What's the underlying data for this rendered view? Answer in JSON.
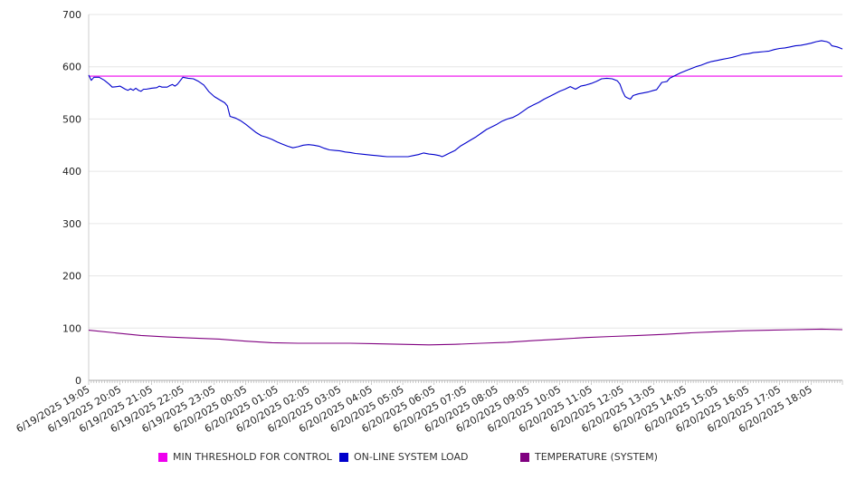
{
  "chart_data": {
    "type": "line",
    "ylim": [
      0,
      700
    ],
    "yticks": [
      0,
      100,
      200,
      300,
      400,
      500,
      600,
      700
    ],
    "grid": true,
    "legend_position": "bottom",
    "x_tick_labels": [
      "6/19/2025 19:05",
      "6/19/2025 20:05",
      "6/19/2025 21:05",
      "6/19/2025 22:05",
      "6/19/2025 23:05",
      "6/20/2025 00:05",
      "6/20/2025 01:05",
      "6/20/2025 02:05",
      "6/20/2025 03:05",
      "6/20/2025 04:05",
      "6/20/2025 05:05",
      "6/20/2025 06:05",
      "6/20/2025 07:05",
      "6/20/2025 08:05",
      "6/20/2025 09:05",
      "6/20/2025 10:05",
      "6/20/2025 11:05",
      "6/20/2025 12:05",
      "6/20/2025 13:05",
      "6/20/2025 14:05",
      "6/20/2025 15:05",
      "6/20/2025 16:05",
      "6/20/2025 17:05",
      "6/20/2025 18:05"
    ],
    "x_unit_minutes": 5,
    "x_end_index": 288,
    "series": [
      {
        "name": "MIN THRESHOLD FOR CONTROL",
        "color": "#ee00ee",
        "points": [
          [
            0,
            582
          ],
          [
            288,
            582
          ]
        ]
      },
      {
        "name": "ON-LINE SYSTEM LOAD",
        "color": "#0000cc",
        "points": [
          [
            0,
            584
          ],
          [
            1,
            574
          ],
          [
            2,
            580
          ],
          [
            4,
            580
          ],
          [
            6,
            574
          ],
          [
            8,
            566
          ],
          [
            9,
            561
          ],
          [
            11,
            562
          ],
          [
            12,
            563
          ],
          [
            14,
            557
          ],
          [
            15,
            555
          ],
          [
            16,
            558
          ],
          [
            17,
            555
          ],
          [
            18,
            559
          ],
          [
            19,
            555
          ],
          [
            20,
            553
          ],
          [
            21,
            557
          ],
          [
            22,
            557
          ],
          [
            24,
            559
          ],
          [
            26,
            560
          ],
          [
            27,
            563
          ],
          [
            28,
            561
          ],
          [
            30,
            561
          ],
          [
            31,
            564
          ],
          [
            32,
            566
          ],
          [
            33,
            563
          ],
          [
            34,
            567
          ],
          [
            36,
            580
          ],
          [
            38,
            578
          ],
          [
            40,
            577
          ],
          [
            42,
            572
          ],
          [
            44,
            565
          ],
          [
            46,
            552
          ],
          [
            48,
            543
          ],
          [
            50,
            537
          ],
          [
            52,
            531
          ],
          [
            53,
            525
          ],
          [
            54,
            505
          ],
          [
            56,
            502
          ],
          [
            58,
            497
          ],
          [
            60,
            490
          ],
          [
            62,
            482
          ],
          [
            64,
            474
          ],
          [
            66,
            468
          ],
          [
            68,
            465
          ],
          [
            70,
            461
          ],
          [
            72,
            456
          ],
          [
            74,
            452
          ],
          [
            76,
            448
          ],
          [
            78,
            445
          ],
          [
            80,
            447
          ],
          [
            82,
            450
          ],
          [
            84,
            451
          ],
          [
            86,
            450
          ],
          [
            88,
            448
          ],
          [
            90,
            444
          ],
          [
            92,
            441
          ],
          [
            94,
            440
          ],
          [
            96,
            439
          ],
          [
            98,
            437
          ],
          [
            100,
            436
          ],
          [
            102,
            434
          ],
          [
            104,
            433
          ],
          [
            106,
            432
          ],
          [
            108,
            431
          ],
          [
            110,
            430
          ],
          [
            112,
            429
          ],
          [
            114,
            428
          ],
          [
            116,
            428
          ],
          [
            118,
            428
          ],
          [
            120,
            428
          ],
          [
            122,
            428
          ],
          [
            124,
            430
          ],
          [
            126,
            432
          ],
          [
            128,
            435
          ],
          [
            130,
            433
          ],
          [
            132,
            432
          ],
          [
            134,
            430
          ],
          [
            135,
            428
          ],
          [
            136,
            430
          ],
          [
            138,
            435
          ],
          [
            140,
            440
          ],
          [
            142,
            448
          ],
          [
            144,
            454
          ],
          [
            146,
            460
          ],
          [
            148,
            466
          ],
          [
            150,
            473
          ],
          [
            152,
            480
          ],
          [
            154,
            485
          ],
          [
            156,
            490
          ],
          [
            158,
            496
          ],
          [
            160,
            500
          ],
          [
            162,
            503
          ],
          [
            164,
            508
          ],
          [
            166,
            515
          ],
          [
            168,
            522
          ],
          [
            170,
            527
          ],
          [
            172,
            532
          ],
          [
            174,
            538
          ],
          [
            176,
            543
          ],
          [
            178,
            548
          ],
          [
            180,
            553
          ],
          [
            182,
            557
          ],
          [
            184,
            562
          ],
          [
            186,
            557
          ],
          [
            188,
            563
          ],
          [
            190,
            565
          ],
          [
            192,
            568
          ],
          [
            194,
            572
          ],
          [
            196,
            577
          ],
          [
            198,
            578
          ],
          [
            200,
            577
          ],
          [
            202,
            573
          ],
          [
            203,
            567
          ],
          [
            204,
            553
          ],
          [
            205,
            543
          ],
          [
            206,
            540
          ],
          [
            207,
            538
          ],
          [
            208,
            545
          ],
          [
            210,
            548
          ],
          [
            212,
            550
          ],
          [
            214,
            552
          ],
          [
            216,
            555
          ],
          [
            217,
            556
          ],
          [
            218,
            563
          ],
          [
            219,
            570
          ],
          [
            220,
            571
          ],
          [
            221,
            572
          ],
          [
            222,
            578
          ],
          [
            224,
            583
          ],
          [
            226,
            588
          ],
          [
            228,
            592
          ],
          [
            230,
            596
          ],
          [
            232,
            600
          ],
          [
            234,
            603
          ],
          [
            236,
            607
          ],
          [
            238,
            610
          ],
          [
            240,
            612
          ],
          [
            242,
            614
          ],
          [
            244,
            616
          ],
          [
            246,
            618
          ],
          [
            248,
            621
          ],
          [
            250,
            624
          ],
          [
            252,
            625
          ],
          [
            254,
            627
          ],
          [
            256,
            628
          ],
          [
            258,
            629
          ],
          [
            260,
            630
          ],
          [
            262,
            633
          ],
          [
            264,
            635
          ],
          [
            266,
            636
          ],
          [
            268,
            638
          ],
          [
            270,
            640
          ],
          [
            272,
            641
          ],
          [
            274,
            643
          ],
          [
            276,
            645
          ],
          [
            278,
            648
          ],
          [
            280,
            650
          ],
          [
            282,
            648
          ],
          [
            283,
            646
          ],
          [
            284,
            640
          ],
          [
            286,
            638
          ],
          [
            287,
            636
          ],
          [
            288,
            634
          ]
        ]
      },
      {
        "name": "TEMPERATURE (SYSTEM)",
        "color": "#800080",
        "points": [
          [
            0,
            96
          ],
          [
            10,
            91
          ],
          [
            20,
            86
          ],
          [
            30,
            83
          ],
          [
            40,
            81
          ],
          [
            50,
            79
          ],
          [
            60,
            75
          ],
          [
            70,
            72
          ],
          [
            80,
            71
          ],
          [
            90,
            71
          ],
          [
            100,
            71
          ],
          [
            110,
            70
          ],
          [
            120,
            69
          ],
          [
            130,
            68
          ],
          [
            140,
            69
          ],
          [
            150,
            71
          ],
          [
            160,
            73
          ],
          [
            170,
            76
          ],
          [
            180,
            79
          ],
          [
            190,
            82
          ],
          [
            200,
            84
          ],
          [
            210,
            86
          ],
          [
            220,
            88
          ],
          [
            230,
            91
          ],
          [
            240,
            93
          ],
          [
            250,
            95
          ],
          [
            260,
            96
          ],
          [
            270,
            97
          ],
          [
            280,
            98
          ],
          [
            288,
            97
          ]
        ]
      }
    ]
  }
}
